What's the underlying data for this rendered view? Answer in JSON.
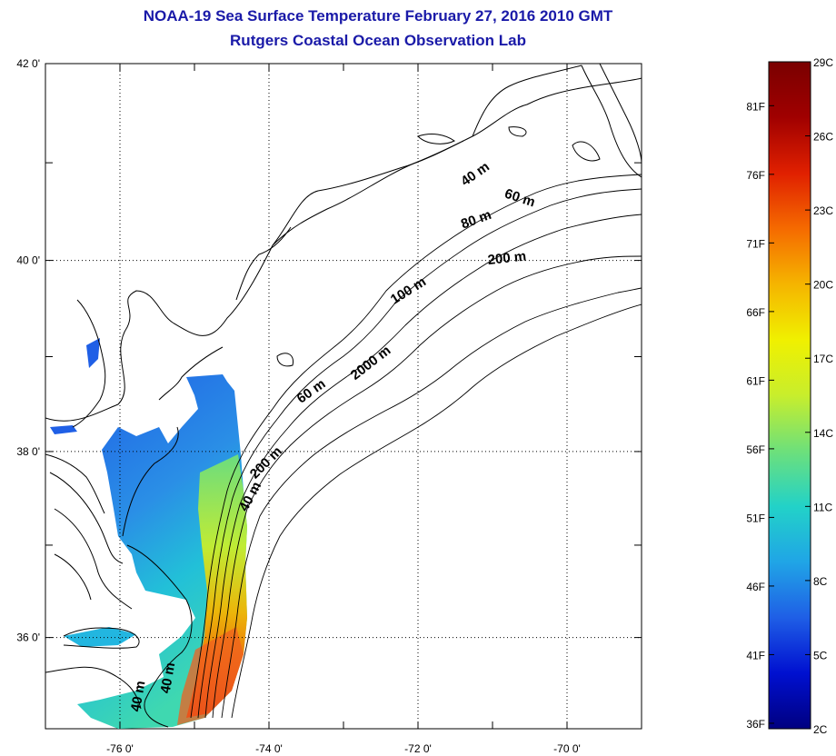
{
  "title": "NOAA-19 Sea Surface Temperature February 27, 2016 2010 GMT",
  "subtitle": "Rutgers Coastal Ocean Observation Lab",
  "map": {
    "lat_labels": [
      {
        "value": 42,
        "text": "42 0'"
      },
      {
        "value": 40,
        "text": "40 0'"
      },
      {
        "value": 38,
        "text": "38 0'"
      },
      {
        "value": 36,
        "text": "36 0'"
      }
    ],
    "lon_labels": [
      {
        "value": -76,
        "text": "-76 0'"
      },
      {
        "value": -74,
        "text": "-74 0'"
      },
      {
        "value": -72,
        "text": "-72 0'"
      },
      {
        "value": -70,
        "text": "-70 0'"
      }
    ],
    "lon_range": [
      -77.0,
      -69.0
    ],
    "lat_range": [
      35.0,
      42.0
    ],
    "grid": "dotted",
    "contour_labels": [
      {
        "text": "40 m",
        "lon": -71.2,
        "lat": 40.85,
        "angle": -35
      },
      {
        "text": "60 m",
        "lon": -70.65,
        "lat": 40.6,
        "angle": 18
      },
      {
        "text": "80 m",
        "lon": -71.2,
        "lat": 40.38,
        "angle": -20
      },
      {
        "text": "200 m",
        "lon": -70.8,
        "lat": 39.98,
        "angle": -6
      },
      {
        "text": "100 m",
        "lon": -72.1,
        "lat": 39.65,
        "angle": -32
      },
      {
        "text": "2000 m",
        "lon": -72.6,
        "lat": 38.9,
        "angle": -38
      },
      {
        "text": "60 m",
        "lon": -73.4,
        "lat": 38.6,
        "angle": -35
      },
      {
        "text": "200 m",
        "lon": -74.0,
        "lat": 37.85,
        "angle": -45
      },
      {
        "text": "40 m",
        "lon": -74.2,
        "lat": 37.5,
        "angle": -62
      },
      {
        "text": "40 m",
        "lon": -75.3,
        "lat": 35.55,
        "angle": -80
      },
      {
        "text": "40 m",
        "lon": -75.7,
        "lat": 35.35,
        "angle": -80
      }
    ]
  },
  "colorbar": {
    "colors": [
      "#000080",
      "#0010d0",
      "#1f5fe6",
      "#20a5e6",
      "#22d2c8",
      "#6ee07a",
      "#c8ee2c",
      "#f0f000",
      "#f5b400",
      "#f56a00",
      "#e02000",
      "#a00000",
      "#7a0000"
    ],
    "left_labels": [
      "36F",
      "41F",
      "46F",
      "51F",
      "56F",
      "61F",
      "66F",
      "71F",
      "76F",
      "81F"
    ],
    "left_values": [
      36,
      41,
      46,
      51,
      56,
      61,
      66,
      71,
      76,
      81
    ],
    "right_labels": [
      "2C",
      "5C",
      "8C",
      "11C",
      "14C",
      "17C",
      "20C",
      "23C",
      "26C",
      "29C"
    ],
    "right_values": [
      2,
      5,
      8,
      11,
      14,
      17,
      20,
      23,
      26,
      29
    ],
    "range_c": [
      2,
      29
    ]
  }
}
